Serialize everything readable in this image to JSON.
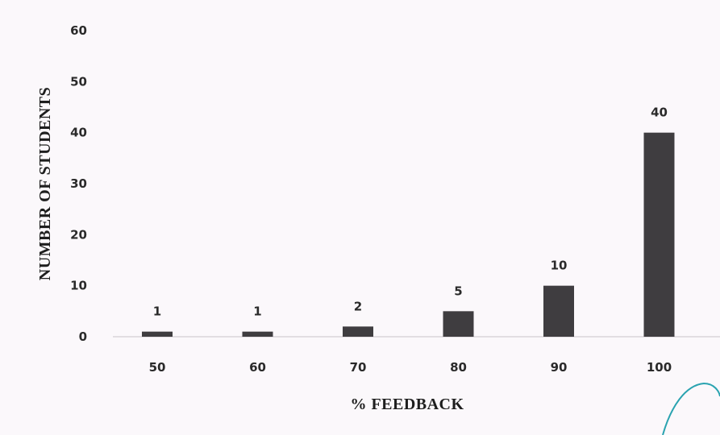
{
  "chart_data": {
    "type": "bar",
    "title": "",
    "xlabel": "% FEEDBACK",
    "ylabel": "NUMBER OF STUDENTS",
    "categories": [
      "50",
      "60",
      "70",
      "80",
      "90",
      "100"
    ],
    "values": [
      1,
      1,
      2,
      5,
      10,
      40
    ],
    "data_labels": [
      "1",
      "1",
      "2",
      "5",
      "10",
      "40"
    ],
    "ylim": [
      0,
      60
    ],
    "yticks": [
      "0",
      "10",
      "20",
      "30",
      "40",
      "50",
      "60"
    ],
    "grid": false,
    "legend": "none",
    "colors": {
      "bar": "#3f3d40",
      "baseline": "#c9c4c9",
      "text": "#2a2a2a",
      "background": "#fbf8fb",
      "pen_mark": "#2aa3b0"
    }
  }
}
